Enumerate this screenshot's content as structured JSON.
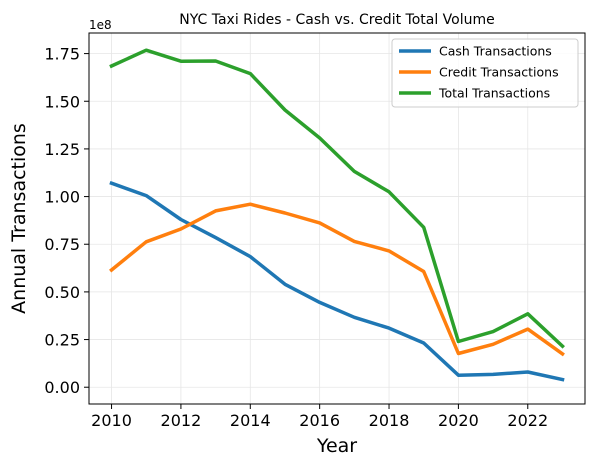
{
  "chart_data": {
    "type": "line",
    "title": "NYC Taxi Rides - Cash vs. Credit Total Volume",
    "xlabel": "Year",
    "ylabel": "Annual Transactions",
    "y_offset_label": "1e8",
    "x": [
      2010,
      2011,
      2012,
      2013,
      2014,
      2015,
      2016,
      2017,
      2018,
      2019,
      2020,
      2021,
      2022,
      2023
    ],
    "xticks": [
      "2010",
      "2012",
      "2014",
      "2016",
      "2018",
      "2020",
      "2022"
    ],
    "yticks": [
      "0.00",
      "0.25",
      "0.50",
      "0.75",
      "1.00",
      "1.25",
      "1.50",
      "1.75"
    ],
    "xlim": [
      2009.35,
      2023.65
    ],
    "ylim": [
      -0.088,
      1.858
    ],
    "grid": true,
    "legend_position": "top-right",
    "series": [
      {
        "name": "Cash Transactions",
        "color": "#1f77b4",
        "values": [
          1.07,
          1.005,
          0.88,
          0.785,
          0.685,
          0.54,
          0.445,
          0.367,
          0.31,
          0.232,
          0.063,
          0.067,
          0.08,
          0.04
        ]
      },
      {
        "name": "Credit Transactions",
        "color": "#ff7f0e",
        "values": [
          0.615,
          0.763,
          0.83,
          0.925,
          0.96,
          0.914,
          0.862,
          0.765,
          0.715,
          0.607,
          0.177,
          0.225,
          0.305,
          0.175
        ]
      },
      {
        "name": "Total Transactions",
        "color": "#2ca02c",
        "values": [
          1.685,
          1.768,
          1.71,
          1.711,
          1.645,
          1.454,
          1.307,
          1.132,
          1.025,
          0.839,
          0.24,
          0.292,
          0.385,
          0.215
        ]
      }
    ]
  }
}
